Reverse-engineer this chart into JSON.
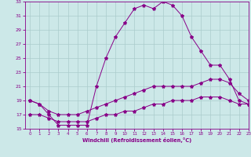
{
  "line1_x": [
    0,
    1,
    2,
    3,
    4,
    5,
    6,
    7,
    8,
    9,
    10,
    11,
    12,
    13,
    14,
    15,
    16,
    17,
    18,
    19,
    20,
    21,
    22,
    23
  ],
  "line1_y": [
    19,
    18.5,
    17,
    15.5,
    15.5,
    15.5,
    15.5,
    21,
    25,
    28,
    30,
    32,
    32.5,
    32,
    33,
    32.5,
    31,
    28,
    26,
    24,
    24,
    22,
    19,
    18.5
  ],
  "line2_x": [
    0,
    1,
    2,
    3,
    4,
    5,
    6,
    7,
    8,
    9,
    10,
    11,
    12,
    13,
    14,
    15,
    16,
    17,
    18,
    19,
    20,
    21,
    22,
    23
  ],
  "line2_y": [
    19,
    18.5,
    17.5,
    17,
    17,
    17,
    17.5,
    18,
    18.5,
    19,
    19.5,
    20,
    20.5,
    21,
    21,
    21,
    21,
    21,
    21.5,
    22,
    22,
    21.5,
    20,
    19
  ],
  "line3_x": [
    0,
    1,
    2,
    3,
    4,
    5,
    6,
    7,
    8,
    9,
    10,
    11,
    12,
    13,
    14,
    15,
    16,
    17,
    18,
    19,
    20,
    21,
    22,
    23
  ],
  "line3_y": [
    17,
    17,
    16.5,
    16,
    16,
    16,
    16,
    16.5,
    17,
    17,
    17.5,
    17.5,
    18,
    18.5,
    18.5,
    19,
    19,
    19,
    19.5,
    19.5,
    19.5,
    19,
    18.5,
    18.5
  ],
  "line_color": "#880088",
  "bg_color": "#cce8e8",
  "grid_color": "#aacccc",
  "xlabel": "Windchill (Refroidissement éolien,°C)",
  "ylim": [
    15,
    33
  ],
  "xlim": [
    -0.5,
    23
  ],
  "yticks": [
    15,
    17,
    19,
    21,
    23,
    25,
    27,
    29,
    31,
    33
  ],
  "xticks": [
    0,
    1,
    2,
    3,
    4,
    5,
    6,
    7,
    8,
    9,
    10,
    11,
    12,
    13,
    14,
    15,
    16,
    17,
    18,
    19,
    20,
    21,
    22,
    23
  ]
}
